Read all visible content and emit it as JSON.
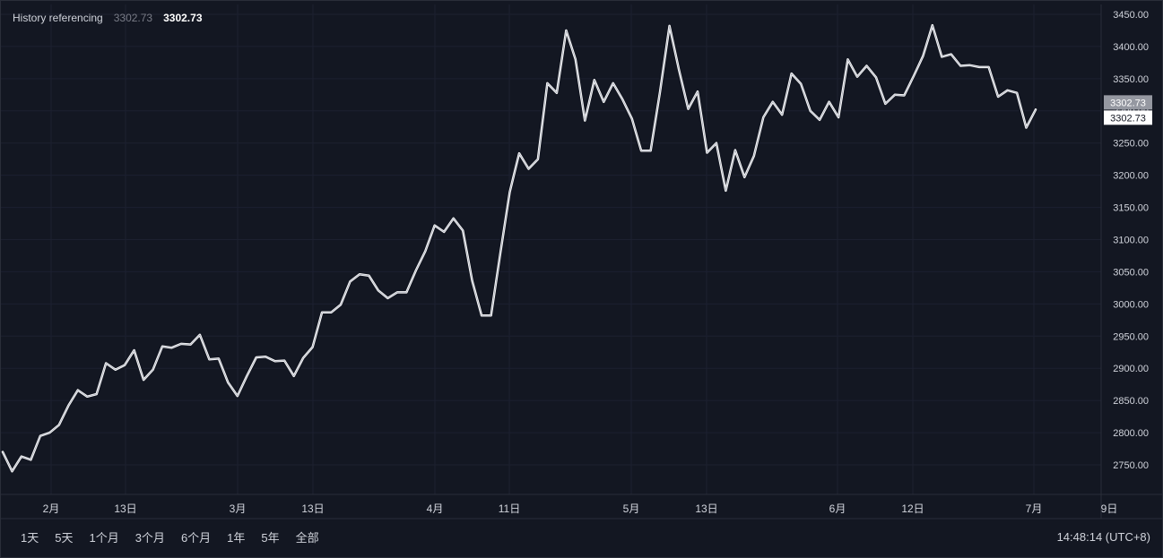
{
  "legend": {
    "name": "History referencing",
    "value_dim": "3302.73",
    "value": "3302.73"
  },
  "price_badge": {
    "top": "3302.73",
    "bottom": "3302.73"
  },
  "range_buttons": [
    "1天",
    "5天",
    "1个月",
    "3个月",
    "6个月",
    "1年",
    "5年",
    "全部"
  ],
  "clock": "14:48:14 (UTC+8)",
  "colors": {
    "background": "#131722",
    "line": "#ffffff",
    "grid": "#1e2230",
    "text": "#d1d4dc"
  },
  "chart_data": {
    "type": "line",
    "y_ticks": [
      "3450.00",
      "3400.00",
      "3350.00",
      "3300.00",
      "3250.00",
      "3200.00",
      "3150.00",
      "3100.00",
      "3050.00",
      "3000.00",
      "2950.00",
      "2900.00",
      "2850.00",
      "2800.00",
      "2750.00"
    ],
    "x_ticks": [
      "2月",
      "13日",
      "3月",
      "13日",
      "4月",
      "11日",
      "5月",
      "13日",
      "6月",
      "12日",
      "7月",
      "9日"
    ],
    "ylim": [
      2710,
      3475
    ],
    "values": [
      2770,
      2740,
      2763,
      2758,
      2795,
      2800,
      2812,
      2842,
      2866,
      2856,
      2860,
      2908,
      2898,
      2905,
      2928,
      2882,
      2898,
      2934,
      2932,
      2938,
      2937,
      2952,
      2914,
      2915,
      2878,
      2857,
      2888,
      2917,
      2918,
      2911,
      2912,
      2888,
      2916,
      2933,
      2987,
      2987,
      2999,
      3035,
      3046,
      3044,
      3021,
      3009,
      3018,
      3018,
      3052,
      3082,
      3122,
      3112,
      3133,
      3114,
      3036,
      2982,
      2982,
      3080,
      3174,
      3234,
      3210,
      3225,
      3343,
      3328,
      3425,
      3380,
      3285,
      3348,
      3314,
      3343,
      3318,
      3288,
      3238,
      3238,
      3330,
      3432,
      3365,
      3303,
      3330,
      3235,
      3250,
      3176,
      3239,
      3197,
      3230,
      3290,
      3314,
      3294,
      3358,
      3342,
      3300,
      3286,
      3314,
      3290,
      3380,
      3353,
      3370,
      3352,
      3311,
      3325,
      3324,
      3354,
      3385,
      3433,
      3384,
      3388,
      3370,
      3371,
      3368,
      3368,
      3322,
      3332,
      3328,
      3274,
      3302
    ]
  }
}
